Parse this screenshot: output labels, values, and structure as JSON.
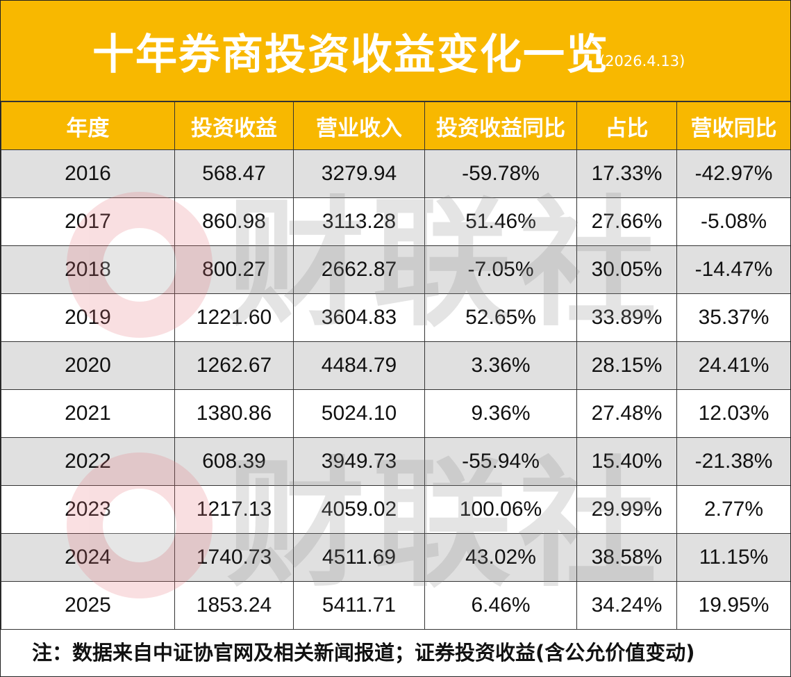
{
  "title": "十年券商投资收益变化一览",
  "date": "(2026.4.13)",
  "watermark": "财联社",
  "colors": {
    "header_bg": "#F8B800",
    "header_text": "#ffffff",
    "row_alt": "#d7d7d7",
    "logo_red": "#E8737A"
  },
  "chart_data": {
    "type": "table",
    "columns": [
      "年度",
      "投资收益",
      "营业收入",
      "投资收益同比",
      "占比",
      "营收同比"
    ],
    "rows": [
      [
        "2016",
        "568.47",
        "3279.94",
        "-59.78%",
        "17.33%",
        "-42.97%"
      ],
      [
        "2017",
        "860.98",
        "3113.28",
        "51.46%",
        "27.66%",
        "-5.08%"
      ],
      [
        "2018",
        "800.27",
        "2662.87",
        "-7.05%",
        "30.05%",
        "-14.47%"
      ],
      [
        "2019",
        "1221.60",
        "3604.83",
        "52.65%",
        "33.89%",
        "35.37%"
      ],
      [
        "2020",
        "1262.67",
        "4484.79",
        "3.36%",
        "28.15%",
        "24.41%"
      ],
      [
        "2021",
        "1380.86",
        "5024.10",
        "9.36%",
        "27.48%",
        "12.03%"
      ],
      [
        "2022",
        "608.39",
        "3949.73",
        "-55.94%",
        "15.40%",
        "-21.38%"
      ],
      [
        "2023",
        "1217.13",
        "4059.02",
        "100.06%",
        "29.99%",
        "2.77%"
      ],
      [
        "2024",
        "1740.73",
        "4511.69",
        "43.02%",
        "38.58%",
        "11.15%"
      ],
      [
        "2025",
        "1853.24",
        "5411.71",
        "6.46%",
        "34.24%",
        "19.95%"
      ]
    ]
  },
  "note": "注：数据来自中证协官网及相关新闻报道；证券投资收益(含公允价值变动)"
}
